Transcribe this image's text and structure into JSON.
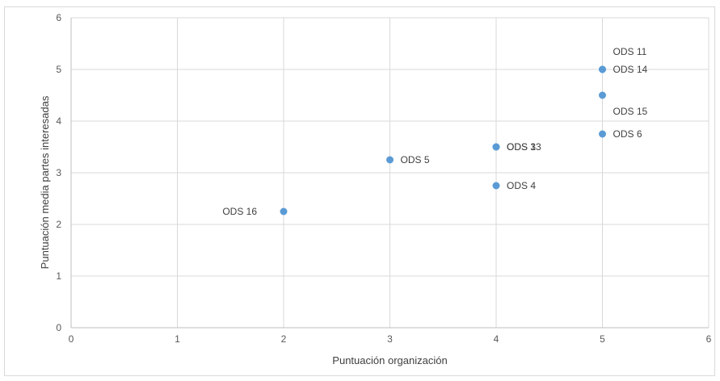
{
  "chart_data": {
    "type": "scatter",
    "title": "",
    "xlabel": "Puntuación organización",
    "ylabel": "Puntuación media partes interesadas",
    "xlim": [
      0,
      6
    ],
    "ylim": [
      0,
      6
    ],
    "xticks": [
      "0",
      "1",
      "2",
      "3",
      "4",
      "5",
      "6"
    ],
    "yticks": [
      "0",
      "1",
      "2",
      "3",
      "4",
      "5",
      "6"
    ],
    "grid": true,
    "marker_color": "#5b9bd5",
    "points": [
      {
        "x": 2,
        "y": 2.25,
        "label": "ODS 16",
        "label_pos": "left"
      },
      {
        "x": 3,
        "y": 3.25,
        "label": "ODS 5",
        "label_pos": "right"
      },
      {
        "x": 4,
        "y": 3.5,
        "label": "ODS 3",
        "label_pos": "right"
      },
      {
        "x": 4,
        "y": 3.5,
        "label": "ODS 13",
        "label_pos": "right"
      },
      {
        "x": 4,
        "y": 2.75,
        "label": "ODS 4",
        "label_pos": "right"
      },
      {
        "x": 5,
        "y": 5,
        "label": "ODS 11",
        "label_pos": "above"
      },
      {
        "x": 5,
        "y": 5,
        "label": "ODS 14",
        "label_pos": "right"
      },
      {
        "x": 5,
        "y": 4.5,
        "label": "ODS 15",
        "label_pos": "below"
      },
      {
        "x": 5,
        "y": 3.75,
        "label": "ODS 6",
        "label_pos": "right"
      }
    ]
  }
}
